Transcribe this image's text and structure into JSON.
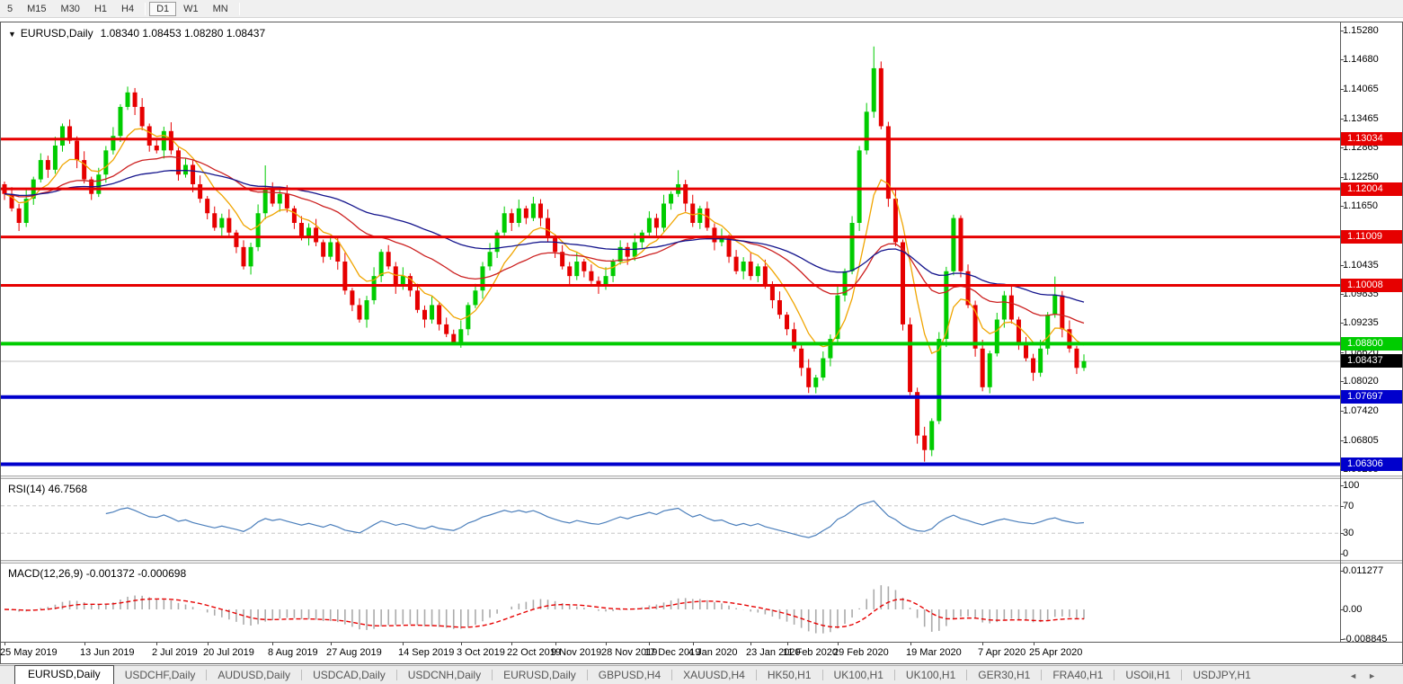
{
  "toolbar": {
    "timeframes": [
      "5",
      "M15",
      "M30",
      "H1",
      "H4",
      "D1",
      "W1",
      "MN"
    ],
    "active_timeframe": "D1"
  },
  "chart": {
    "title_icon": "▼",
    "symbol": "EURUSD,Daily",
    "ohlc": "1.08340 1.08453 1.08280 1.08437"
  },
  "rsi_panel": {
    "label": "RSI(14) 46.7568"
  },
  "macd_panel": {
    "label": "MACD(12,26,9) -0.001372 -0.000698"
  },
  "tabs": {
    "items": [
      {
        "label": "EURUSD,Daily",
        "active": true
      },
      {
        "label": "USDCHF,Daily",
        "active": false
      },
      {
        "label": "AUDUSD,Daily",
        "active": false
      },
      {
        "label": "USDCAD,Daily",
        "active": false
      },
      {
        "label": "USDCNH,Daily",
        "active": false
      },
      {
        "label": "EURUSD,Daily",
        "active": false
      },
      {
        "label": "GBPUSD,H4",
        "active": false
      },
      {
        "label": "XAUUSD,H4",
        "active": false
      },
      {
        "label": "HK50,H1",
        "active": false
      },
      {
        "label": "UK100,H1",
        "active": false
      },
      {
        "label": "UK100,H1",
        "active": false
      },
      {
        "label": "GER30,H1",
        "active": false
      },
      {
        "label": "FRA40,H1",
        "active": false
      },
      {
        "label": "USOil,H1",
        "active": false
      },
      {
        "label": "USDJPY,H1",
        "active": false
      }
    ],
    "scroll_left_icon": "◄",
    "scroll_right_icon": "►"
  },
  "chart_data": {
    "type": "candlestick",
    "symbol": "EURUSD",
    "timeframe": "Daily",
    "ylim": [
      1.06074,
      1.15447
    ],
    "bull_color": "#00cc00",
    "bear_color": "#e60000",
    "first_open": 1.121,
    "closes": [
      1.119,
      1.116,
      1.113,
      1.118,
      1.122,
      1.126,
      1.124,
      1.129,
      1.133,
      1.13,
      1.126,
      1.122,
      1.119,
      1.123,
      1.128,
      1.131,
      1.137,
      1.14,
      1.137,
      1.133,
      1.129,
      1.128,
      1.132,
      1.128,
      1.123,
      1.125,
      1.121,
      1.118,
      1.115,
      1.112,
      1.114,
      1.111,
      1.108,
      1.104,
      1.108,
      1.115,
      1.12,
      1.117,
      1.119,
      1.116,
      1.113,
      1.11,
      1.112,
      1.109,
      1.106,
      1.109,
      1.105,
      1.099,
      1.096,
      1.093,
      1.097,
      1.102,
      1.107,
      1.104,
      1.1,
      1.102,
      1.099,
      1.095,
      1.093,
      1.096,
      1.092,
      1.09,
      1.088,
      1.091,
      1.096,
      1.099,
      1.104,
      1.107,
      1.111,
      1.115,
      1.113,
      1.116,
      1.114,
      1.117,
      1.114,
      1.11,
      1.107,
      1.104,
      1.102,
      1.105,
      1.103,
      1.101,
      1.1,
      1.102,
      1.105,
      1.108,
      1.106,
      1.109,
      1.111,
      1.114,
      1.112,
      1.117,
      1.119,
      1.121,
      1.117,
      1.113,
      1.116,
      1.112,
      1.109,
      1.11,
      1.106,
      1.103,
      1.105,
      1.102,
      1.104,
      1.1,
      1.097,
      1.094,
      1.091,
      1.087,
      1.083,
      1.079,
      1.081,
      1.085,
      1.089,
      1.098,
      1.103,
      1.113,
      1.128,
      1.136,
      1.145,
      1.133,
      1.118,
      1.109,
      1.092,
      1.078,
      1.069,
      1.066,
      1.072,
      1.089,
      1.103,
      1.114,
      1.103,
      1.096,
      1.087,
      1.079,
      1.086,
      1.093,
      1.098,
      1.093,
      1.088,
      1.085,
      1.082,
      1.087,
      1.094,
      1.098,
      1.091,
      1.087,
      1.083,
      1.0844
    ],
    "wick_overrides": {
      "17": {
        "high": 1.1412
      },
      "36": {
        "high": 1.1249
      },
      "62": {
        "low": 1.0879
      },
      "93": {
        "high": 1.1239
      },
      "111": {
        "low": 1.0778
      },
      "120": {
        "high": 1.1495
      },
      "127": {
        "low": 1.0636
      },
      "131": {
        "high": 1.1147
      },
      "145": {
        "high": 1.1019
      }
    },
    "moving_averages": [
      {
        "name": "fast",
        "period": 8,
        "color": "#f0a500"
      },
      {
        "name": "medium",
        "period": 30,
        "color": "#cc2020"
      },
      {
        "name": "slow",
        "period": 60,
        "color": "#14148c"
      }
    ],
    "horizontal_levels": [
      {
        "price": 1.13034,
        "label": "1.13034",
        "color": "#e60000",
        "width": 3
      },
      {
        "price": 1.12004,
        "label": "1.12004",
        "color": "#e60000",
        "width": 3
      },
      {
        "price": 1.11009,
        "label": "1.11009",
        "color": "#e60000",
        "width": 3
      },
      {
        "price": 1.10008,
        "label": "1.10008",
        "color": "#e60000",
        "width": 3
      },
      {
        "price": 1.088,
        "label": "1.08800",
        "color": "#00cc00",
        "width": 4
      },
      {
        "price": 1.07697,
        "label": "1.07697",
        "color": "#0000cc",
        "width": 4
      },
      {
        "price": 1.06306,
        "label": "1.06306",
        "color": "#0000cc",
        "width": 4
      }
    ],
    "current_price": {
      "price": 1.08437,
      "label": "1.08437",
      "line_color": "#c0c0c0",
      "label_bg": "#000000"
    },
    "price_ticks": [
      1.1528,
      1.1468,
      1.14065,
      1.13465,
      1.12865,
      1.1225,
      1.1165,
      1.10435,
      1.09835,
      1.09235,
      1.0862,
      1.0802,
      1.0742,
      1.06805,
      1.06205
    ],
    "rsi": {
      "period": 14,
      "color": "#4a7ebb",
      "range": [
        0,
        100
      ],
      "ticks": [
        100,
        70,
        30,
        0
      ],
      "dashed_levels": [
        70,
        30
      ]
    },
    "macd": {
      "fast": 12,
      "slow": 26,
      "signal": 9,
      "histogram_color": "#ababab",
      "signal_color": "#e60000",
      "ticks": [
        "0.011277",
        "0.00",
        "-0.008845"
      ],
      "tick_values": [
        0.011277,
        0,
        -0.008845
      ]
    },
    "date_labels": [
      {
        "text": "25 May 2019",
        "i": 0
      },
      {
        "text": "13 Jun 2019",
        "i": 11
      },
      {
        "text": "2 Jul 2019",
        "i": 21
      },
      {
        "text": "20 Jul 2019",
        "i": 28
      },
      {
        "text": "8 Aug 2019",
        "i": 37
      },
      {
        "text": "27 Aug 2019",
        "i": 45
      },
      {
        "text": "14 Sep 2019",
        "i": 55
      },
      {
        "text": "3 Oct 2019",
        "i": 63
      },
      {
        "text": "22 Oct 2019",
        "i": 70
      },
      {
        "text": "9 Nov 2019",
        "i": 76
      },
      {
        "text": "28 Nov 2019",
        "i": 83
      },
      {
        "text": "17 Dec 2019",
        "i": 89
      },
      {
        "text": "4 Jan 2020",
        "i": 95
      },
      {
        "text": "23 Jan 2020",
        "i": 103
      },
      {
        "text": "11 Feb 2020",
        "i": 108
      },
      {
        "text": "29 Feb 2020",
        "i": 115
      },
      {
        "text": "19 Mar 2020",
        "i": 125
      },
      {
        "text": "7 Apr 2020",
        "i": 135
      },
      {
        "text": "25 Apr 2020",
        "i": 142
      }
    ]
  }
}
